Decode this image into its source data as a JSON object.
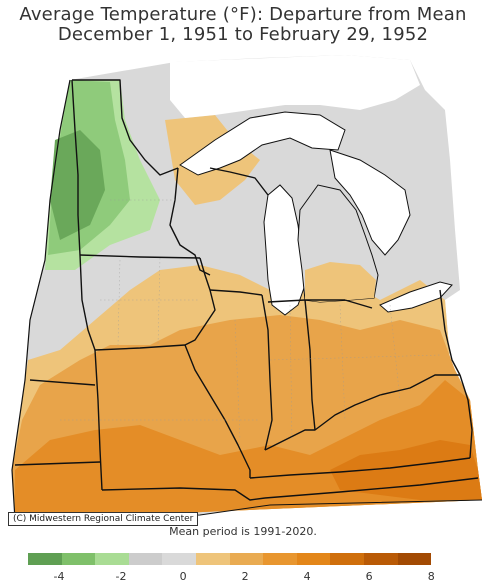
{
  "title": {
    "line1": "Average Temperature (°F): Departure from Mean",
    "line2": "December 1, 1951 to February 29, 1952"
  },
  "credit": "(C) Midwestern Regional Climate Center",
  "mean_note": "Mean period is 1991-2020.",
  "legend": {
    "colors": [
      "#5f9f53",
      "#7fc06a",
      "#a9dc94",
      "#cccccc",
      "#d9d9d9",
      "#eec47a",
      "#e9ab52",
      "#e8962f",
      "#e38619",
      "#cf6f0c",
      "#b95a06",
      "#a24a03"
    ],
    "tick_labels": [
      "-4",
      "-2",
      "0",
      "2",
      "4",
      "6",
      "8"
    ],
    "tick_values": [
      -4,
      -2,
      0,
      2,
      4,
      6,
      8
    ],
    "range": [
      -5,
      8
    ]
  },
  "map": {
    "region": "Upper Midwest (MN, WI, MI, IA, IL, IN, MO, KY, OH)",
    "colors": {
      "cool_strong": "#6aa85a",
      "cool": "#8fcb7b",
      "cool_light": "#b5e2a0",
      "neutral": "#d9d9d9",
      "warm_light": "#eec47a",
      "warm": "#e8a44a",
      "warm_strong": "#e48d27",
      "warm_stronger": "#dc7b14",
      "lake": "#ffffff",
      "border": "#111111"
    }
  }
}
